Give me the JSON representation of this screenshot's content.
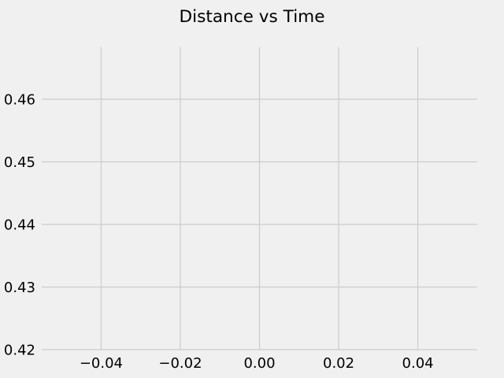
{
  "chart_data": {
    "type": "line",
    "title": "Distance vs Time",
    "xlabel": "",
    "ylabel": "",
    "xlim": [
      -0.055,
      0.055
    ],
    "ylim": [
      0.42,
      0.4683
    ],
    "x_ticks": [
      -0.04,
      -0.02,
      0.0,
      0.02,
      0.04
    ],
    "x_tick_labels": [
      "−0.04",
      "−0.02",
      "0.00",
      "0.02",
      "0.04"
    ],
    "y_ticks": [
      0.42,
      0.43,
      0.44,
      0.45,
      0.46
    ],
    "y_tick_labels": [
      "0.42",
      "0.43",
      "0.44",
      "0.45",
      "0.46"
    ],
    "grid": true,
    "series": [
      {
        "x": [],
        "y": []
      }
    ],
    "colors": {
      "background": "#f0f0f0",
      "grid": "#cbcbcb",
      "text": "#000000"
    }
  }
}
